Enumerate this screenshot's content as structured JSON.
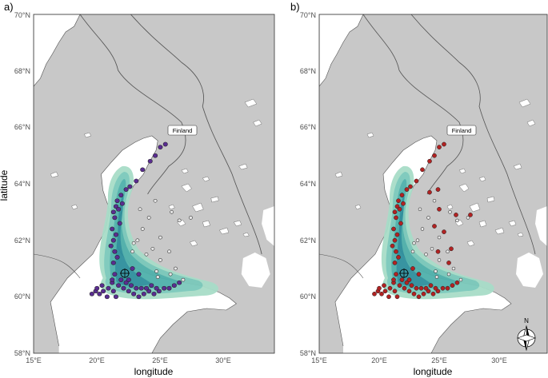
{
  "figure": {
    "ylabel": "latitude",
    "colors": {
      "land": "#c8c8c8",
      "sea": "#ffffff",
      "border": "#555555",
      "density_light": "#a8ddc8",
      "density_dark": "#2e8f9c",
      "points_a": "#5a2d91",
      "points_b": "#b22222",
      "unused_point": "#e6e6e6"
    }
  },
  "panels": [
    {
      "tag": "a)",
      "xlabel": "longitude",
      "x_ticks": [
        "15°E",
        "20°E",
        "25°E",
        "30°E"
      ],
      "y_ticks": [
        "58°N",
        "60°N",
        "62°N",
        "64°N",
        "66°N",
        "68°N",
        "70°N"
      ],
      "country_label": "Finland",
      "point_color_key": "points_a"
    },
    {
      "tag": "b)",
      "xlabel": "longitude",
      "x_ticks": [
        "15°E",
        "20°E",
        "25°E",
        "30°E"
      ],
      "y_ticks": [
        "58°N",
        "60°N",
        "62°N",
        "64°N",
        "66°N",
        "68°N",
        "70°N"
      ],
      "country_label": "Finland",
      "point_color_key": "points_b",
      "north_arrow_label": "N"
    }
  ],
  "map_data": {
    "lon_range": [
      15,
      34
    ],
    "lat_range": [
      58,
      70
    ],
    "sampling_locations_lonlat": [
      [
        19.6,
        60.1
      ],
      [
        19.9,
        60.2
      ],
      [
        20.2,
        60.1
      ],
      [
        20.5,
        60.2
      ],
      [
        20.9,
        60.3
      ],
      [
        21.3,
        60.2
      ],
      [
        21.7,
        60.4
      ],
      [
        22.1,
        60.3
      ],
      [
        22.5,
        60.2
      ],
      [
        22.9,
        60.1
      ],
      [
        23.3,
        60.0
      ],
      [
        23.7,
        60.1
      ],
      [
        24.1,
        60.2
      ],
      [
        24.5,
        60.1
      ],
      [
        24.9,
        60.2
      ],
      [
        25.3,
        60.3
      ],
      [
        25.7,
        60.3
      ],
      [
        26.1,
        60.4
      ],
      [
        26.5,
        60.5
      ],
      [
        20.0,
        60.3
      ],
      [
        20.4,
        60.4
      ],
      [
        20.8,
        60.0
      ],
      [
        21.2,
        60.5
      ],
      [
        21.5,
        60.0
      ],
      [
        21.9,
        60.6
      ],
      [
        22.3,
        60.5
      ],
      [
        22.7,
        60.4
      ],
      [
        23.1,
        60.3
      ],
      [
        23.5,
        60.3
      ],
      [
        23.9,
        60.3
      ],
      [
        24.3,
        60.4
      ],
      [
        24.7,
        60.3
      ],
      [
        21.4,
        60.8
      ],
      [
        21.3,
        61.2
      ],
      [
        21.4,
        61.6
      ],
      [
        21.3,
        62.0
      ],
      [
        21.2,
        62.4
      ],
      [
        21.4,
        62.8
      ],
      [
        21.5,
        63.2
      ],
      [
        21.3,
        63.0
      ],
      [
        21.6,
        63.4
      ],
      [
        21.9,
        63.6
      ],
      [
        22.3,
        63.8
      ],
      [
        22.6,
        63.9
      ],
      [
        23.1,
        64.1
      ],
      [
        23.6,
        64.5
      ],
      [
        24.2,
        64.8
      ],
      [
        24.6,
        65.0
      ],
      [
        25.0,
        65.3
      ],
      [
        25.4,
        65.4
      ],
      [
        21.6,
        61.4
      ],
      [
        21.5,
        62.2
      ],
      [
        21.8,
        62.6
      ],
      [
        21.7,
        63.1
      ],
      [
        22.0,
        63.3
      ],
      [
        21.1,
        61.8
      ],
      [
        21.2,
        60.6
      ],
      [
        22.8,
        61.0
      ],
      [
        23.3,
        60.8
      ],
      [
        22.5,
        60.6
      ]
    ],
    "unused_locations_lonlat": [
      [
        23.4,
        63.1
      ],
      [
        24.1,
        62.8
      ],
      [
        25.0,
        62.1
      ],
      [
        24.4,
        61.7
      ],
      [
        25.7,
        61.6
      ],
      [
        22.8,
        61.6
      ],
      [
        23.6,
        62.4
      ],
      [
        24.8,
        60.7
      ],
      [
        26.2,
        61.0
      ],
      [
        25.0,
        61.3
      ],
      [
        25.8,
        60.8
      ],
      [
        24.6,
        63.4
      ],
      [
        23.2,
        62.0
      ],
      [
        22.9,
        61.9
      ],
      [
        26.5,
        62.7
      ],
      [
        27.4,
        62.8
      ],
      [
        24.7,
        60.9
      ],
      [
        23.9,
        61.5
      ],
      [
        26.8,
        60.6
      ],
      [
        25.9,
        63.0
      ]
    ],
    "panel_b_only_lonlat": [
      [
        24.2,
        63.7
      ],
      [
        25.0,
        63.1
      ],
      [
        26.4,
        62.9
      ],
      [
        27.6,
        62.9
      ],
      [
        25.4,
        62.3
      ],
      [
        24.9,
        61.6
      ],
      [
        25.8,
        61.2
      ],
      [
        24.6,
        62.5
      ],
      [
        26.0,
        61.7
      ],
      [
        24.9,
        63.8
      ]
    ],
    "density_center_lonlat": [
      21.8,
      60.9
    ]
  }
}
